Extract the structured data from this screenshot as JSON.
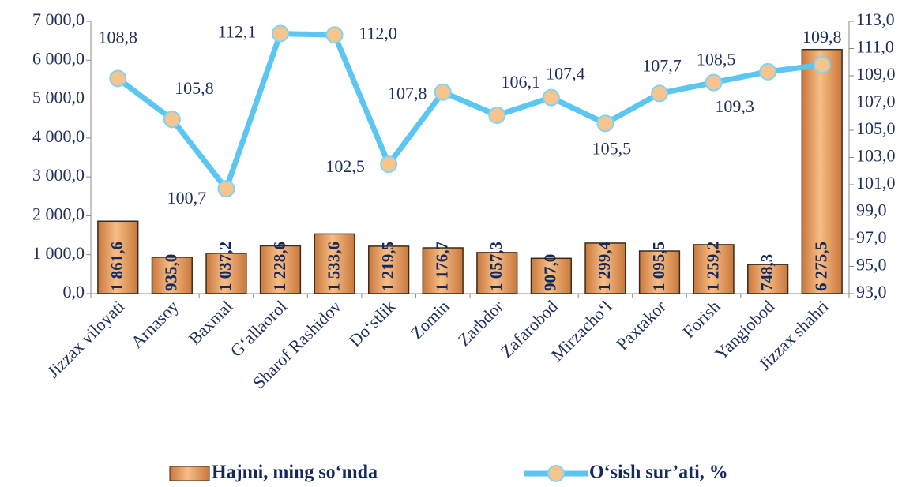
{
  "chart_data": {
    "type": "combo",
    "categories": [
      "Jizzax viloyati",
      "Arnasoy",
      "Baxmal",
      "G‘allaorol",
      "Sharof Rashidov",
      "Do‘stlik",
      "Zomin",
      "Zarbdor",
      "Zafarobod",
      "Mirzacho‘l",
      "Paxtakor",
      "Forish",
      "Yangiobod",
      "Jizzax shahri"
    ],
    "series": [
      {
        "name": "Hajmi, ming so‘mda",
        "type": "bar",
        "color": "#f0a868",
        "values": [
          1861.6,
          935.0,
          1037.2,
          1228.6,
          1533.6,
          1219.5,
          1176.7,
          1057.3,
          907.0,
          1299.4,
          1095.5,
          1259.2,
          748.3,
          6275.5
        ],
        "value_labels": [
          "1 861,6",
          "935,0",
          "1 037,2",
          "1 228,6",
          "1 533,6",
          "1 219,5",
          "1 176,7",
          "1 057,3",
          "907,0",
          "1 299,4",
          "1 095,5",
          "1 259,2",
          "748,3",
          "6 275,5"
        ]
      },
      {
        "name": "O‘sish sur’ati, %",
        "type": "line",
        "axis": "y2",
        "color": "#5bc6f2",
        "values": [
          108.8,
          105.8,
          100.7,
          112.1,
          112.0,
          102.5,
          107.8,
          106.1,
          107.4,
          105.5,
          107.7,
          108.5,
          109.3,
          109.8
        ],
        "value_labels": [
          "108,8",
          "105,8",
          "100,7",
          "112,1",
          "112,0",
          "102,5",
          "107,8",
          "106,1",
          "107,4",
          "105,5",
          "107,7",
          "108,5",
          "109,3",
          "109,8"
        ]
      }
    ],
    "ylim": [
      0,
      7000
    ],
    "yticks": [
      {
        "value": 0,
        "label": "0,0"
      },
      {
        "value": 1000,
        "label": "1 000,0"
      },
      {
        "value": 2000,
        "label": "2 000,0"
      },
      {
        "value": 3000,
        "label": "3 000,0"
      },
      {
        "value": 4000,
        "label": "4 000,0"
      },
      {
        "value": 5000,
        "label": "5 000,0"
      },
      {
        "value": 6000,
        "label": "6 000,0"
      },
      {
        "value": 7000,
        "label": "7 000,0"
      }
    ],
    "y2lim": [
      93,
      113
    ],
    "y2ticks": [
      {
        "value": 93,
        "label": "93,0"
      },
      {
        "value": 95,
        "label": "95,0"
      },
      {
        "value": 97,
        "label": "97,0"
      },
      {
        "value": 99,
        "label": "99,0"
      },
      {
        "value": 101,
        "label": "101,0"
      },
      {
        "value": 103,
        "label": "103,0"
      },
      {
        "value": 105,
        "label": "105,0"
      },
      {
        "value": 107,
        "label": "107,0"
      },
      {
        "value": 109,
        "label": "109,0"
      },
      {
        "value": 111,
        "label": "111,0"
      },
      {
        "value": 113,
        "label": "113,0"
      }
    ],
    "legend": "bottom"
  }
}
